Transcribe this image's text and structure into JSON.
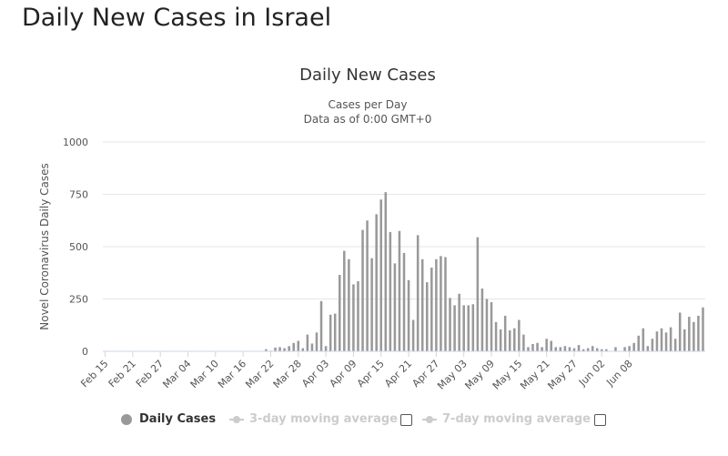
{
  "page": {
    "heading": "Daily New Cases in Israel"
  },
  "chart_data": {
    "type": "bar",
    "title": "Daily New Cases",
    "subtitle_line1": "Cases per Day",
    "subtitle_line2": "Data as of 0:00 GMT+0",
    "ylabel": "Novel Coronavirus Daily Cases",
    "xlabel": "",
    "ylim": [
      0,
      1000
    ],
    "yticks": [
      0,
      250,
      500,
      750,
      1000
    ],
    "grid": true,
    "start_date": "Feb 15",
    "x_tick_labels": [
      "Feb 15",
      "Feb 21",
      "Feb 27",
      "Mar 04",
      "Mar 10",
      "Mar 16",
      "Mar 22",
      "Mar 28",
      "Apr 03",
      "Apr 09",
      "Apr 15",
      "Apr 21",
      "Apr 27",
      "May 03",
      "May 09",
      "May 15",
      "May 21",
      "May 27",
      "Jun 02",
      "Jun 08"
    ],
    "bar_color": "#999999",
    "series": [
      {
        "name": "Daily Cases",
        "values": [
          0,
          0,
          0,
          0,
          0,
          0,
          0,
          0,
          0,
          0,
          0,
          0,
          0,
          0,
          0,
          0,
          0,
          0,
          0,
          0,
          0,
          0,
          0,
          0,
          0,
          0,
          0,
          0,
          0,
          0,
          0,
          0,
          0,
          0,
          0,
          10,
          3,
          18,
          20,
          15,
          25,
          40,
          50,
          15,
          80,
          37,
          90,
          240,
          25,
          175,
          180,
          365,
          480,
          440,
          320,
          335,
          580,
          625,
          445,
          655,
          725,
          760,
          570,
          420,
          575,
          470,
          340,
          150,
          555,
          440,
          330,
          400,
          440,
          455,
          450,
          255,
          220,
          275,
          220,
          220,
          225,
          545,
          300,
          250,
          235,
          140,
          105,
          170,
          100,
          110,
          150,
          80,
          20,
          35,
          40,
          20,
          60,
          50,
          20,
          20,
          25,
          20,
          15,
          30,
          10,
          15,
          25,
          15,
          10,
          10,
          0,
          20,
          0,
          20,
          25,
          40,
          75,
          110,
          25,
          60,
          95,
          110,
          90,
          115,
          60,
          185,
          105,
          165,
          140,
          170,
          210
        ]
      }
    ],
    "legend": [
      {
        "label": "Daily Cases",
        "active": true
      },
      {
        "label": "3-day moving average",
        "active": false
      },
      {
        "label": "7-day moving average",
        "active": false
      }
    ]
  }
}
